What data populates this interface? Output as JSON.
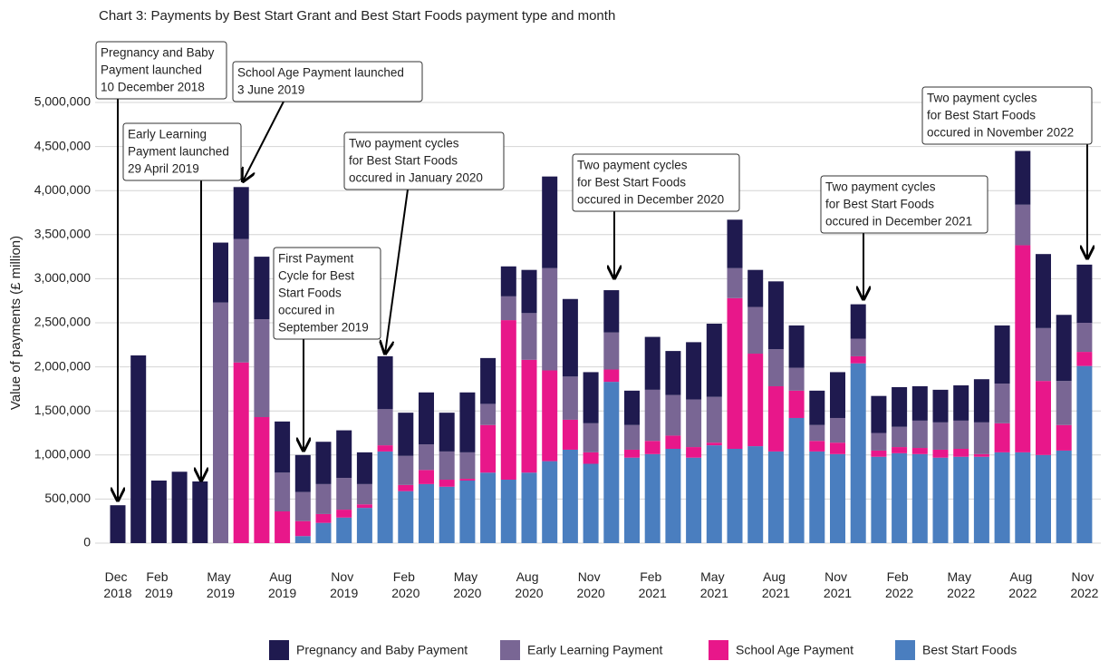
{
  "chart_data": {
    "type": "bar",
    "stacked": true,
    "title": "Chart 3: Payments by Best Start Grant and Best Start Foods payment type and month",
    "y_label": "Value of payments (£ million)",
    "categories": [
      "Dec 2018",
      null,
      "Feb 2019",
      null,
      null,
      "May 2019",
      null,
      null,
      "Aug 2019",
      null,
      null,
      "Nov 2019",
      null,
      null,
      "Feb 2020",
      null,
      null,
      "May 2020",
      null,
      null,
      "Aug 2020",
      null,
      null,
      "Nov 2020",
      null,
      null,
      "Feb 2021",
      null,
      null,
      "May 2021",
      null,
      null,
      "Aug 2021",
      null,
      null,
      "Nov 2021",
      null,
      null,
      "Feb 2022",
      null,
      null,
      "May 2022",
      null,
      null,
      "Aug 2022",
      null,
      null,
      "Nov 2022"
    ],
    "series": [
      {
        "name": "Best Start Foods",
        "color": "#4a7ebf",
        "values": [
          0,
          0,
          0,
          0,
          0,
          0,
          0,
          0,
          0,
          80000,
          230000,
          290000,
          400000,
          1040000,
          590000,
          670000,
          640000,
          710000,
          800000,
          720000,
          800000,
          930000,
          1060000,
          900000,
          1830000,
          970000,
          1010000,
          1070000,
          970000,
          1110000,
          1070000,
          1100000,
          1040000,
          1420000,
          1040000,
          1010000,
          2040000,
          980000,
          1020000,
          1010000,
          970000,
          980000,
          980000,
          1030000,
          1030000,
          1000000,
          1050000,
          2010000
        ]
      },
      {
        "name": "School Age Payment",
        "color": "#e8178a",
        "values": [
          0,
          0,
          0,
          0,
          0,
          0,
          2050000,
          1430000,
          360000,
          170000,
          100000,
          90000,
          40000,
          70000,
          70000,
          160000,
          80000,
          20000,
          540000,
          1810000,
          1280000,
          1030000,
          340000,
          130000,
          140000,
          90000,
          150000,
          150000,
          120000,
          30000,
          1710000,
          1050000,
          740000,
          310000,
          120000,
          130000,
          80000,
          70000,
          70000,
          70000,
          90000,
          90000,
          30000,
          330000,
          2350000,
          840000,
          290000,
          160000
        ]
      },
      {
        "name": "Early Learning Payment",
        "color": "#796694",
        "values": [
          0,
          0,
          0,
          0,
          0,
          2730000,
          1400000,
          1110000,
          440000,
          330000,
          340000,
          360000,
          230000,
          410000,
          330000,
          290000,
          320000,
          300000,
          240000,
          270000,
          530000,
          1160000,
          490000,
          330000,
          420000,
          280000,
          580000,
          460000,
          540000,
          520000,
          340000,
          530000,
          420000,
          260000,
          180000,
          280000,
          200000,
          200000,
          230000,
          310000,
          310000,
          320000,
          360000,
          450000,
          460000,
          600000,
          500000,
          330000
        ]
      },
      {
        "name": "Pregnancy and Baby Payment",
        "color": "#1f1a4f",
        "values": [
          430000,
          2130000,
          710000,
          810000,
          700000,
          680000,
          590000,
          710000,
          580000,
          420000,
          480000,
          540000,
          360000,
          600000,
          490000,
          590000,
          440000,
          680000,
          520000,
          340000,
          490000,
          1040000,
          880000,
          580000,
          480000,
          390000,
          600000,
          500000,
          650000,
          830000,
          550000,
          420000,
          770000,
          480000,
          390000,
          520000,
          390000,
          420000,
          450000,
          390000,
          370000,
          400000,
          490000,
          660000,
          610000,
          840000,
          750000,
          660000
        ]
      }
    ],
    "ylim": [
      0,
      5000000
    ],
    "yticks": [
      0,
      {
        "value": 500000,
        "label": "500,000"
      },
      {
        "value": 1000000,
        "label": "1,000,000"
      },
      {
        "value": 1500000,
        "label": "1,500,000"
      },
      {
        "value": 2000000,
        "label": "2,000,000"
      },
      {
        "value": 2500000,
        "label": "2,500,000"
      },
      {
        "value": 3000000,
        "label": "3,000,000"
      },
      {
        "value": 3500000,
        "label": "3,500,000"
      },
      {
        "value": 4000000,
        "label": "4,000,000"
      },
      {
        "value": 4500000,
        "label": "4,500,000"
      },
      {
        "value": 5000000,
        "label": "5,000,000"
      }
    ],
    "grid": true,
    "legend": "bottom",
    "legend_order": [
      3,
      2,
      1,
      0
    ],
    "annotations": [
      {
        "lines": [
          "Pregnancy and Baby",
          "Payment launched",
          "10 December 2018"
        ]
      },
      {
        "lines": [
          "School Age Payment launched",
          "3 June 2019"
        ]
      },
      {
        "lines": [
          "Early Learning",
          "Payment launched",
          "29 April 2019"
        ]
      },
      {
        "lines": [
          "First Payment",
          "Cycle for Best",
          "Start Foods",
          "occured in",
          "September 2019"
        ]
      },
      {
        "lines": [
          "Two payment cycles",
          "for Best Start Foods",
          "occured in January 2020"
        ]
      },
      {
        "lines": [
          "Two payment cycles",
          "for Best Start Foods",
          "occured in December 2020"
        ]
      },
      {
        "lines": [
          "Two payment cycles",
          "for Best Start Foods",
          "occured in December 2021"
        ]
      },
      {
        "lines": [
          "Two payment cycles",
          "for Best Start Foods",
          "occured in November 2022"
        ]
      }
    ]
  }
}
